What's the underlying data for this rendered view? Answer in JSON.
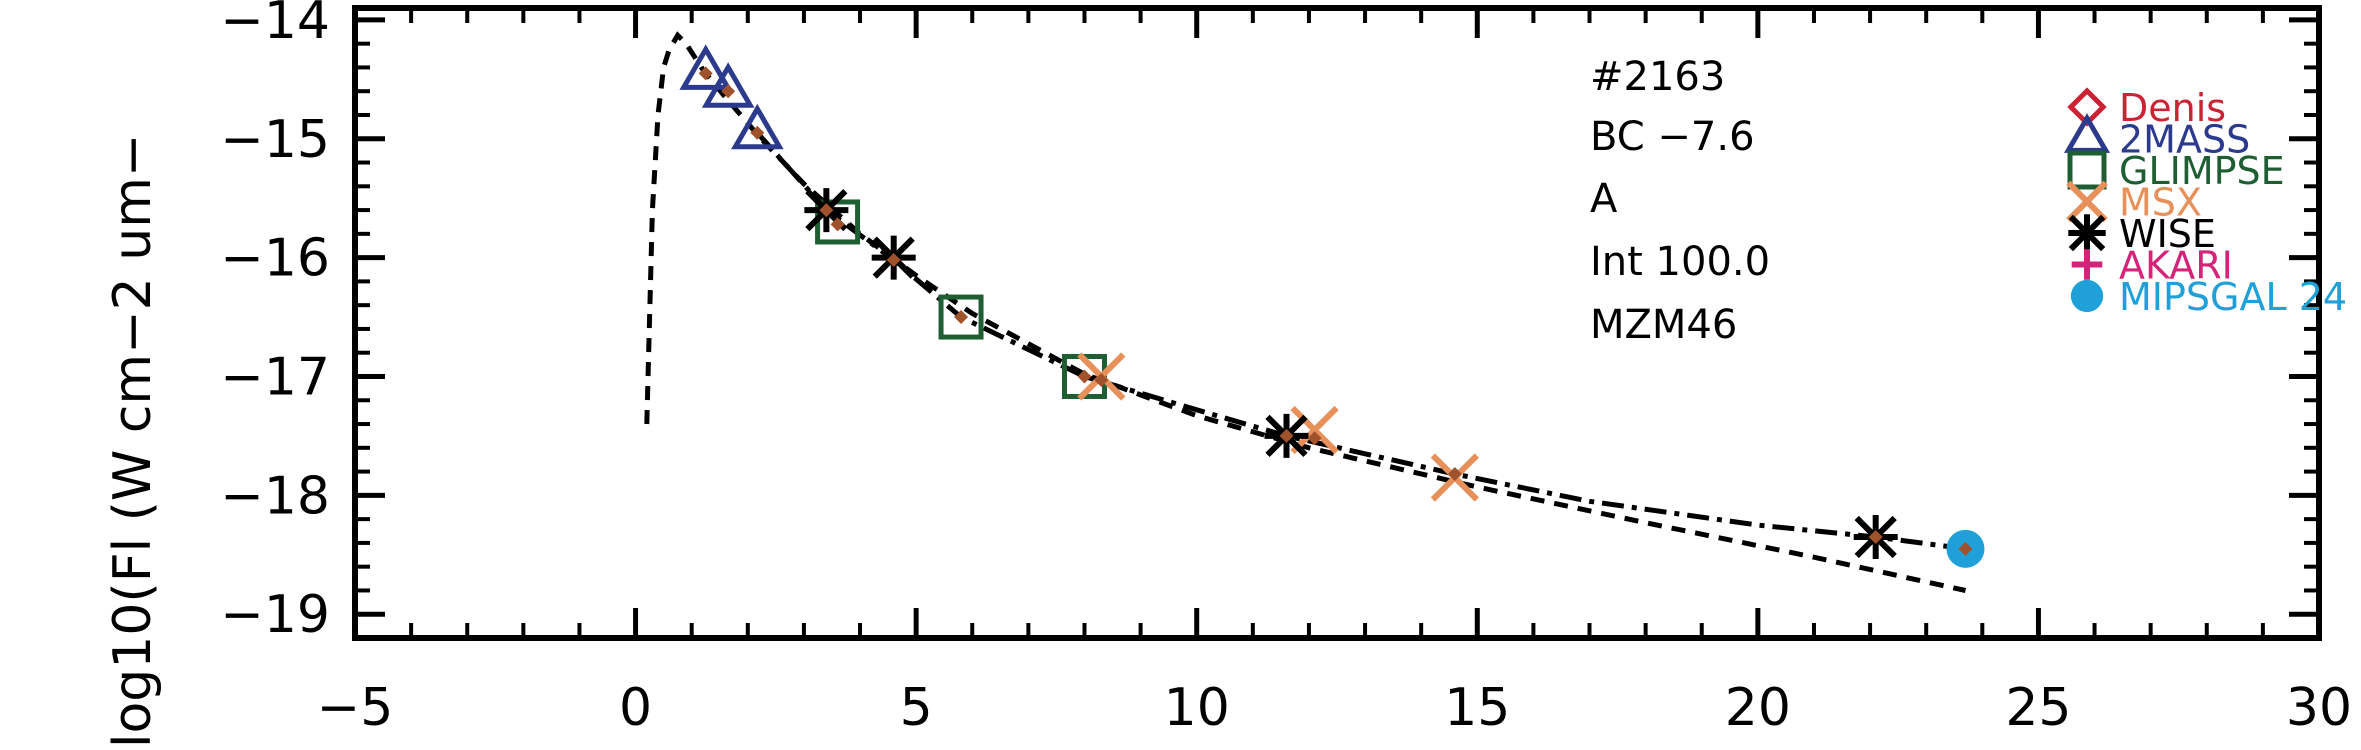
{
  "chart_data": {
    "type": "scatter",
    "title": "",
    "xlabel": "",
    "ylabel": "log10(Fl (W cm−2 um−",
    "xlim": [
      -5,
      30
    ],
    "ylim": [
      -19.2,
      -13.9
    ],
    "x_ticks": [
      -5,
      0,
      5,
      10,
      15,
      20,
      25,
      30
    ],
    "x_tick_labels": [
      "−5",
      "0",
      "5",
      "10",
      "15",
      "20",
      "25",
      "30"
    ],
    "y_ticks": [
      -19,
      -18,
      -17,
      -16,
      -15,
      -14
    ],
    "y_tick_labels": [
      "−19",
      "−18",
      "−17",
      "−16",
      "−15",
      "−14"
    ],
    "grid": false,
    "annotations": [
      "#2163",
      "BC −7.6",
      "A",
      "Int 100.0",
      "MZM46"
    ],
    "legend_position": "top-right",
    "colors": {
      "Denis": "#cc2233",
      "2MASS": "#2b3a8c",
      "GLIMPSE": "#1e5e32",
      "MSX": "#e8905a",
      "WISE": "#000000",
      "AKARI": "#d6237a",
      "MIPSGAL": "#1fa0d8",
      "model": "#a0522d"
    },
    "legend": [
      {
        "label": "Denis",
        "marker": "diamond",
        "color": "#cc2233"
      },
      {
        "label": "2MASS",
        "marker": "triangle",
        "color": "#2b3a8c"
      },
      {
        "label": "GLIMPSE",
        "marker": "square",
        "color": "#1e5e32"
      },
      {
        "label": "MSX",
        "marker": "x",
        "color": "#e8905a"
      },
      {
        "label": "WISE",
        "marker": "asterisk",
        "color": "#000000"
      },
      {
        "label": "AKARI",
        "marker": "plus",
        "color": "#d6237a"
      },
      {
        "label": "MIPSGAL 24",
        "marker": "circle",
        "color": "#1fa0d8"
      }
    ],
    "series": [
      {
        "name": "2MASS",
        "marker": "triangle",
        "x": [
          1.25,
          1.65,
          2.17
        ],
        "y": [
          -14.45,
          -14.6,
          -14.95
        ]
      },
      {
        "name": "GLIMPSE",
        "marker": "square",
        "x": [
          3.6,
          5.8,
          8.0
        ],
        "y": [
          -15.7,
          -16.5,
          -17.0
        ]
      },
      {
        "name": "MSX",
        "marker": "x",
        "x": [
          8.3,
          12.1,
          14.6
        ],
        "y": [
          -17.0,
          -17.45,
          -17.85
        ]
      },
      {
        "name": "WISE",
        "marker": "asterisk",
        "x": [
          3.4,
          4.6,
          11.6,
          22.1
        ],
        "y": [
          -15.6,
          -16.0,
          -17.5,
          -18.35
        ]
      },
      {
        "name": "MIPSGAL 24",
        "marker": "circle",
        "x": [
          23.7
        ],
        "y": [
          -18.45
        ]
      },
      {
        "name": "model",
        "marker": "small-diamond",
        "x": [
          1.25,
          1.65,
          2.17,
          3.4,
          3.6,
          4.6,
          5.8,
          8.0,
          8.3,
          11.6,
          12.1,
          14.6,
          22.1,
          23.7
        ],
        "y": [
          -14.45,
          -14.6,
          -14.95,
          -15.6,
          -15.72,
          -16.02,
          -16.5,
          -17.0,
          -17.03,
          -17.5,
          -17.52,
          -17.82,
          -18.35,
          -18.45
        ]
      }
    ],
    "curves": [
      {
        "style": "dashed",
        "x": [
          0.2,
          0.25,
          0.3,
          0.4,
          0.5,
          0.6,
          0.75,
          0.9,
          1.2,
          1.6,
          2.2,
          3.0,
          4.0,
          5.0,
          6.0,
          8.0,
          10.0,
          12.0,
          15.0,
          18.0,
          21.0,
          23.7
        ],
        "y": [
          -17.4,
          -16.5,
          -15.6,
          -14.8,
          -14.4,
          -14.25,
          -14.13,
          -14.2,
          -14.42,
          -14.65,
          -14.98,
          -15.38,
          -15.8,
          -16.15,
          -16.47,
          -16.98,
          -17.33,
          -17.6,
          -17.93,
          -18.23,
          -18.52,
          -18.8
        ]
      },
      {
        "style": "dash-dot",
        "x": [
          2.17,
          3.4,
          4.6,
          5.8,
          8.0,
          10.0,
          11.6,
          13.0,
          14.6,
          17.0,
          20.0,
          22.1,
          23.7
        ],
        "y": [
          -14.95,
          -15.6,
          -16.02,
          -16.5,
          -17.0,
          -17.28,
          -17.5,
          -17.65,
          -17.82,
          -18.05,
          -18.25,
          -18.35,
          -18.45
        ]
      }
    ]
  }
}
